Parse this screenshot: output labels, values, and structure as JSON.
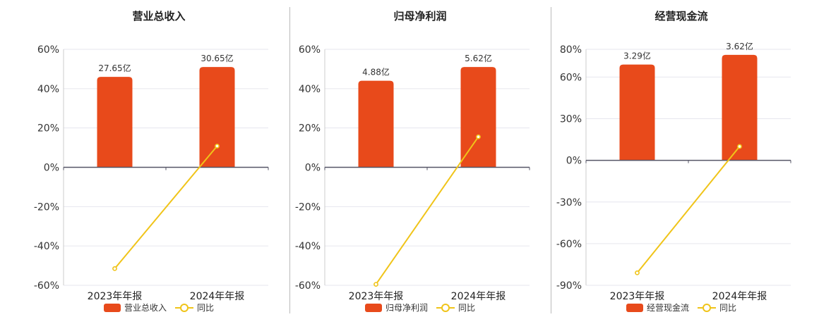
{
  "colors": {
    "bar": "#e84a1b",
    "line": "#f0c419",
    "grid": "#e6e6ee",
    "axis": "#555566"
  },
  "legend": {
    "yoy_label": "同比"
  },
  "chart_data": [
    {
      "type": "bar",
      "title": "营业总收入",
      "categories": [
        "2023年年报",
        "2024年年报"
      ],
      "bar_labels": [
        "27.65亿",
        "30.65亿"
      ],
      "series": [
        {
          "name": "营业总收入",
          "type": "bar",
          "values": [
            46,
            51
          ]
        },
        {
          "name": "同比",
          "type": "line",
          "values": [
            -51.5,
            10.8
          ]
        }
      ],
      "y_ticks": [
        60,
        40,
        20,
        0,
        -20,
        -40,
        -60
      ],
      "y_tick_labels": [
        "60%",
        "40%",
        "20%",
        "0%",
        "-20%",
        "-40%",
        "-60%"
      ],
      "ylim": [
        -60,
        60
      ]
    },
    {
      "type": "bar",
      "title": "归母净利润",
      "categories": [
        "2023年年报",
        "2024年年报"
      ],
      "bar_labels": [
        "4.88亿",
        "5.62亿"
      ],
      "series": [
        {
          "name": "归母净利润",
          "type": "bar",
          "values": [
            44,
            51
          ]
        },
        {
          "name": "同比",
          "type": "line",
          "values": [
            -59.5,
            15.5
          ]
        }
      ],
      "y_ticks": [
        60,
        40,
        20,
        0,
        -20,
        -40,
        -60
      ],
      "y_tick_labels": [
        "60%",
        "40%",
        "20%",
        "0%",
        "-20%",
        "-40%",
        "-60%"
      ],
      "ylim": [
        -60,
        60
      ]
    },
    {
      "type": "bar",
      "title": "经营现金流",
      "categories": [
        "2023年年报",
        "2024年年报"
      ],
      "bar_labels": [
        "3.29亿",
        "3.62亿"
      ],
      "series": [
        {
          "name": "经营现金流",
          "type": "bar",
          "values": [
            69,
            76
          ]
        },
        {
          "name": "同比",
          "type": "line",
          "values": [
            -81,
            10
          ]
        }
      ],
      "y_ticks": [
        80,
        60,
        30,
        0,
        -30,
        -60,
        -90
      ],
      "y_tick_labels": [
        "80%",
        "60%",
        "30%",
        "0%",
        "-30%",
        "-60%",
        "-90%"
      ],
      "ylim": [
        -90,
        80
      ]
    }
  ]
}
